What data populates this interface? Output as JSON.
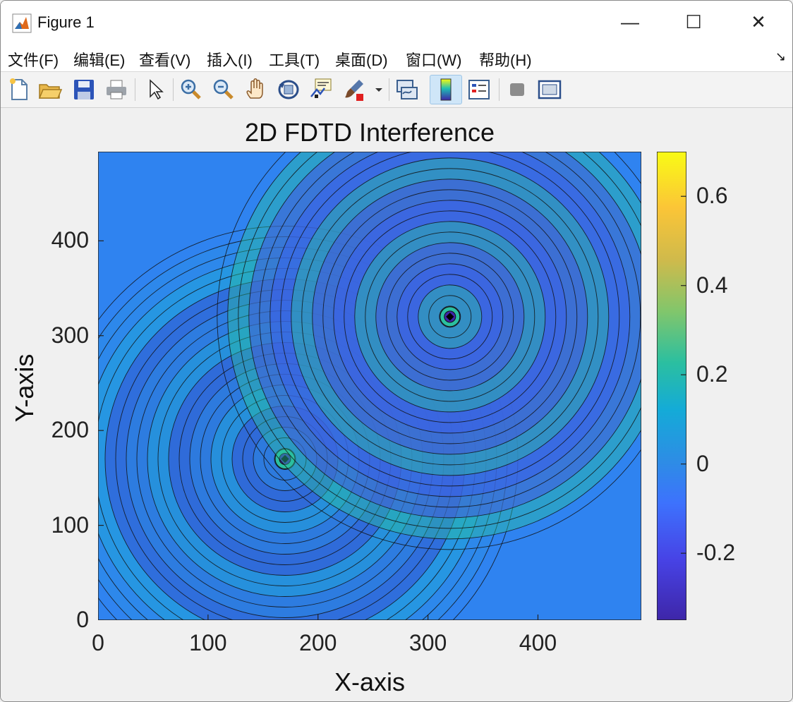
{
  "window": {
    "title": "Figure 1",
    "minimize": "—",
    "maximize": "☐",
    "close": "✕"
  },
  "menu": {
    "items": [
      "文件(F)",
      "编辑(E)",
      "查看(V)",
      "插入(I)",
      "工具(T)",
      "桌面(D)",
      "窗口(W)",
      "帮助(H)"
    ],
    "overflow_glyph": "↘"
  },
  "toolbar": {
    "buttons": [
      {
        "icon": "new-figure-icon"
      },
      {
        "icon": "open-file-icon"
      },
      {
        "icon": "save-icon"
      },
      {
        "icon": "print-icon"
      },
      {
        "icon": "select-pointer-icon"
      },
      {
        "icon": "zoom-in-icon"
      },
      {
        "icon": "zoom-out-icon"
      },
      {
        "icon": "pan-hand-icon"
      },
      {
        "icon": "rotate-3d-icon"
      },
      {
        "icon": "data-cursor-icon"
      },
      {
        "icon": "brush-icon"
      },
      {
        "icon": "link-plot-icon"
      },
      {
        "icon": "colorbar-icon",
        "active": true
      },
      {
        "icon": "legend-icon"
      },
      {
        "icon": "hide-plot-tools-icon"
      },
      {
        "icon": "show-plot-tools-icon"
      }
    ]
  },
  "chart_data": {
    "type": "heatmap",
    "subtype": "filled-contour",
    "title": "2D FDTD Interference",
    "xlabel": "X-axis",
    "ylabel": "Y-axis",
    "xlim": [
      0,
      494
    ],
    "ylim": [
      0,
      494
    ],
    "xticks": [
      0,
      100,
      200,
      300,
      400
    ],
    "yticks": [
      0,
      100,
      200,
      300,
      400
    ],
    "xtick_labels": [
      "0",
      "100",
      "200",
      "300",
      "400"
    ],
    "ytick_labels": [
      "0",
      "100",
      "200",
      "300",
      "400"
    ],
    "sources": [
      {
        "x": 170,
        "y": 170
      },
      {
        "x": 320,
        "y": 320
      }
    ],
    "colorbar": {
      "colormap": "parula",
      "range": [
        -0.35,
        0.7
      ],
      "ticks": [
        -0.2,
        0,
        0.2,
        0.4,
        0.6
      ],
      "tick_labels": [
        "-0.2",
        "0",
        "0.2",
        "0.4",
        "0.6"
      ]
    },
    "grid": false
  }
}
